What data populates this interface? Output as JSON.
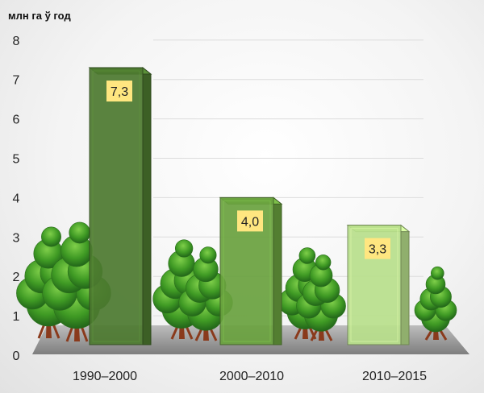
{
  "chart_data": {
    "type": "bar",
    "ylabel": "млн га ў год",
    "ylim": [
      0,
      8
    ],
    "yticks": [
      "0",
      "1",
      "2",
      "3",
      "4",
      "5",
      "6",
      "7",
      "8"
    ],
    "categories": [
      "1990–2000",
      "2000–2010",
      "2010–2015"
    ],
    "values": [
      7.3,
      4.0,
      3.3
    ],
    "value_labels": [
      "7,3",
      "4,0",
      "3,3"
    ],
    "grid": true,
    "legend": "none"
  },
  "colors": {
    "bar_fills": [
      "#4d7a30",
      "#6aa23f",
      "#b9e08c"
    ],
    "value_label_bg": "#ffe680",
    "floor": "#9a9a9a",
    "tree_canopy": "#3f9a24",
    "tree_trunk": "#8a3a1c"
  }
}
